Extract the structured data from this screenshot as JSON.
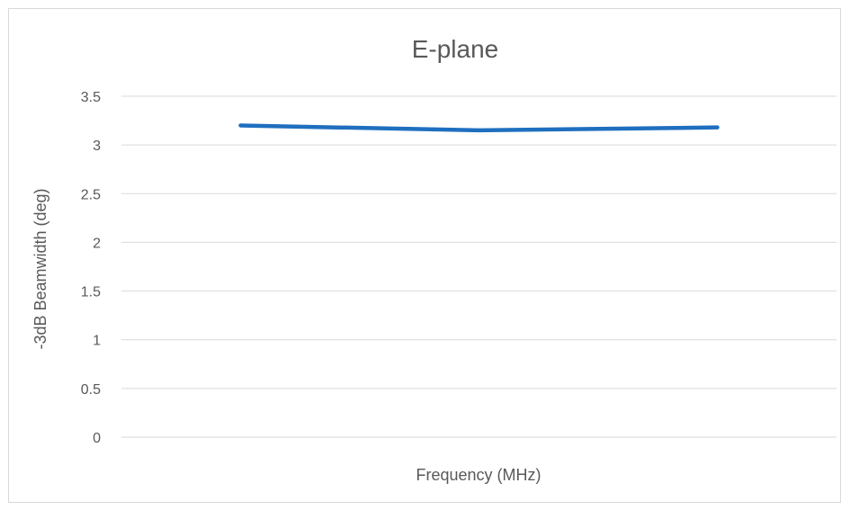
{
  "chart_data": {
    "type": "line",
    "title": "E-plane",
    "xlabel": "Frequency (MHz)",
    "ylabel": "-3dB Beamwidth (deg)",
    "categories": [
      "",
      "",
      ""
    ],
    "series": [
      {
        "values": [
          3.2,
          3.15,
          3.18
        ],
        "color": "#1f6fbf"
      }
    ],
    "ylim": [
      0,
      3.5
    ],
    "yticks": [
      "0",
      "0.5",
      "1",
      "1.5",
      "2",
      "2.5",
      "3",
      "3.5"
    ],
    "grid": true,
    "legend": "none",
    "colors": {
      "gridline": "#d9d9d9",
      "text": "#595959",
      "border": "#d9d9d9"
    }
  }
}
